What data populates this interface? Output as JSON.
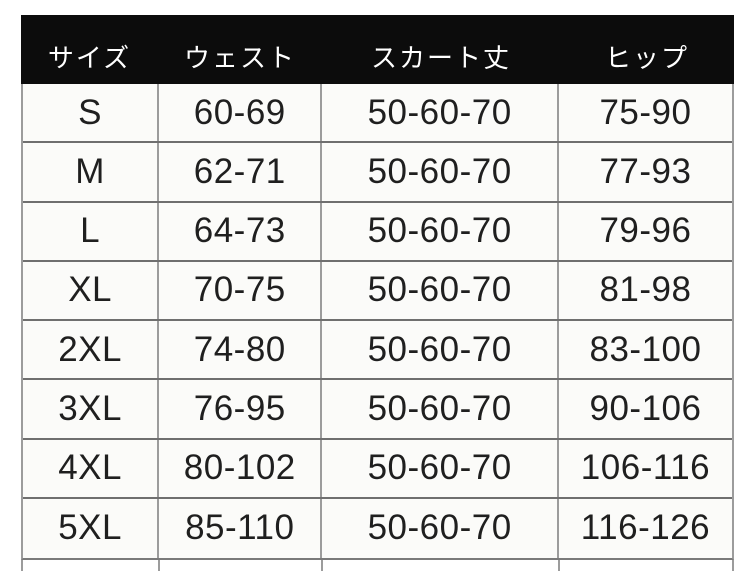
{
  "chart_data": {
    "type": "table",
    "headers": [
      "サイズ",
      "ウェスト",
      "スカート丈",
      "ヒップ"
    ],
    "rows": [
      [
        "S",
        "60-69",
        "50-60-70",
        "75-90"
      ],
      [
        "M",
        "62-71",
        "50-60-70",
        "77-93"
      ],
      [
        "L",
        "64-73",
        "50-60-70",
        "79-96"
      ],
      [
        "XL",
        "70-75",
        "50-60-70",
        "81-98"
      ],
      [
        "2XL",
        "74-80",
        "50-60-70",
        "83-100"
      ],
      [
        "3XL",
        "76-95",
        "50-60-70",
        "90-106"
      ],
      [
        "4XL",
        "80-102",
        "50-60-70",
        "106-116"
      ],
      [
        "5XL",
        "85-110",
        "50-60-70",
        "116-126"
      ]
    ]
  },
  "colors": {
    "header_bg": "#0c0c0c",
    "header_text": "#ffffff",
    "cell_bg": "#fbfbf9",
    "horizontal_line": "#6f6f6f",
    "vertical_line": "#9c9c9c",
    "body_text": "#1f1f1f",
    "page_bg": "#ffffff"
  }
}
